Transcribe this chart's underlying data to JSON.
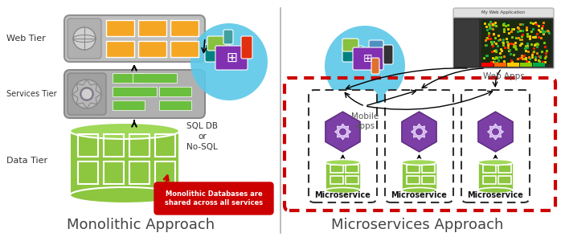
{
  "title_left": "Monolithic Approach",
  "title_right": "Microservices Approach",
  "label_web": "Web Tier",
  "label_services": "Services Tier",
  "label_data": "Data Tier",
  "label_sqldb": "SQL DB\nor\nNo-SQL",
  "label_mono_note": "Monolithic Databases are\nshared across all services",
  "label_mobile": "Mobile\napps",
  "label_webapps": "Web Apps",
  "label_microservice": "Microservice",
  "bg_color": "#ffffff",
  "green_fill": "#8dc63f",
  "green_dark": "#5a9a2a",
  "purple_fill": "#7b3fa6",
  "purple_dark": "#5a2a7a",
  "red_fill": "#cc0000",
  "cyan_fill": "#5bc8e8",
  "orange_fill": "#f5a623",
  "gray_box": "#a8a8a8",
  "gray_light": "#c8c8c8",
  "title_color": "#555555",
  "title_fontsize": 13,
  "label_fontsize": 8
}
